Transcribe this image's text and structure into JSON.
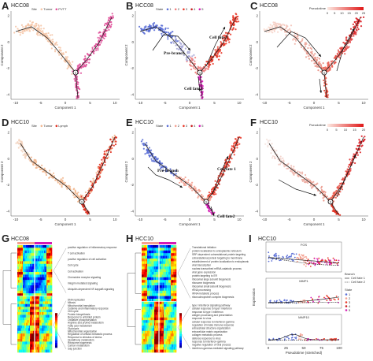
{
  "panels": {
    "A": {
      "letter": "A",
      "title": "HCC08",
      "legend_title": "Site",
      "legend_items": [
        "Tumor",
        "PVTT"
      ],
      "colors": [
        "#f5c6a8",
        "#e0519a"
      ],
      "xlabel": "Component 1",
      "ylabel": "Component 2"
    },
    "B": {
      "letter": "B",
      "title": "HCC08",
      "legend_title": "State",
      "legend_items": [
        "1",
        "2",
        "3",
        "4",
        "5"
      ],
      "colors": [
        "#5b6fd6",
        "#f08080",
        "#e83a2a",
        "#c81e1e",
        "#d41bb4"
      ],
      "xlabel": "Component 1",
      "ylabel": "Component 2",
      "annotations": [
        "Pre-branch",
        "Cell fate 1",
        "Cell fate 2"
      ]
    },
    "C": {
      "letter": "C",
      "title": "HCC08",
      "legend_title": "Pseudotime",
      "legend_ticks": [
        "0",
        "5",
        "10",
        "15",
        "20",
        "25"
      ],
      "xlabel": "Component 1",
      "ylabel": "Component 2"
    },
    "D": {
      "letter": "D",
      "title": "HCC10",
      "legend_title": "Site",
      "legend_items": [
        "Tumor",
        "Lymph"
      ],
      "colors": [
        "#f2b78f",
        "#e03020"
      ],
      "xlabel": "Component 1",
      "ylabel": "Component 2"
    },
    "E": {
      "letter": "E",
      "title": "HCC10",
      "legend_title": "State",
      "legend_items": [
        "1",
        "2",
        "3",
        "4",
        "5"
      ],
      "colors": [
        "#5b6fd6",
        "#f4a090",
        "#e83a2a",
        "#c81e1e",
        "#d41bb4"
      ],
      "xlabel": "Component 1",
      "ylabel": "Component 2",
      "annotations": [
        "Pre-branch",
        "Cell fate 1",
        "Cell fate2"
      ]
    },
    "F": {
      "letter": "F",
      "title": "HCC10",
      "legend_title": "Pseudotime",
      "legend_ticks": [
        "0",
        "5",
        "10",
        "15",
        "20"
      ],
      "xlabel": "Component 1",
      "ylabel": "Component 2"
    },
    "G": {
      "letter": "G",
      "title": "HCC08",
      "terms_top": [
        "positive regulation of inflammatory response",
        "T cell activation",
        "positive regulation of cell activation",
        "Cell cycle",
        "Cell activation",
        "Chemokine receptor signaling",
        "Integrin mediated signaling",
        "Ubiquitin-dependent NF-kappaB signaling"
      ],
      "terms_bottom": [
        "DNA replication",
        "Mitosis",
        "Mitochondrial translation",
        "Cytokine and inflammatory response",
        "Cell cycle",
        "Protein biosynthesis",
        "Response to unfolded protein",
        "Oxidative phosphorylation",
        "Arginine and proline metabolism",
        "Fatty acid metabolism",
        "Glycolysis",
        "Mitochondrial organization",
        "Regulation of cellular metabolic process",
        "Response to stimulus of stress",
        "Glutathione metabolism",
        "Ribosome biogenesis",
        "Carbon metabolism",
        "Gap junction"
      ]
    },
    "H": {
      "letter": "H",
      "title": "HCC10",
      "terms_top": [
        "Translational initiation",
        "protein localization to endoplasmic reticulum",
        "SRP-dependent cotranslational protein targeting",
        "cotranslational protein targeting to membrane",
        "establishment of protein localization to endoplasmic reticulum",
        "viral transcription",
        "nuclear-transcribed mRNA catabolic process",
        "viral gene expression",
        "protein targeting to ER",
        "ribosomal large subunit biogenesis",
        "ribosome biogenesis",
        "ribosomal small subunit biogenesis",
        "rRNA processing",
        "rRNA metabolic process",
        "ribonucleoprotein complex biogenesis"
      ],
      "terms_bottom": [
        "type I interferon signaling pathway",
        "cellular response to type I interferon",
        "response to type I interferon",
        "antigen processing and presentation",
        "response to virus",
        "cellular response to interferon-gamma",
        "regulation of innate immune response",
        "extracellular structure organization",
        "extracellular matrix organization",
        "collagen metabolic process",
        "defense response to virus",
        "response to interferon-gamma",
        "negative regulation of viral process",
        "interferon-gamma-mediated signaling pathway"
      ]
    },
    "I": {
      "letter": "I",
      "title": "HCC10",
      "genes": [
        "FOS",
        "MMP1",
        "MMP10"
      ],
      "xlabel": "Pseudotime (stretched)",
      "ylabel": "Expression",
      "branch_title": "Branch",
      "branch_items": [
        "Cell fate 1",
        "Cell fate 2"
      ],
      "state_title": "State",
      "state_items": [
        "1",
        "2",
        "3",
        "4",
        "5"
      ],
      "state_colors": [
        "#5b6fd6",
        "#f4a090",
        "#e83a2a",
        "#c81e1e",
        "#d41bb4"
      ],
      "xticks": [
        "0",
        "25",
        "50",
        "75",
        "100"
      ]
    }
  },
  "chart_data": [
    {
      "type": "scatter",
      "panel": "A",
      "title": "HCC08",
      "series": [
        {
          "name": "Tumor",
          "color": "#f5c6a8"
        },
        {
          "name": "PVTT",
          "color": "#e0519a"
        }
      ],
      "xlabel": "Component 1",
      "ylabel": "Component 2"
    },
    {
      "type": "scatter",
      "panel": "B",
      "title": "HCC08",
      "series": [
        {
          "name": "1"
        },
        {
          "name": "2"
        },
        {
          "name": "3"
        },
        {
          "name": "4"
        },
        {
          "name": "5"
        }
      ],
      "xlabel": "Component 1",
      "ylabel": "Component 2"
    },
    {
      "type": "scatter",
      "panel": "C",
      "title": "HCC08",
      "colorbar": {
        "label": "Pseudotime",
        "ticks": [
          0,
          5,
          10,
          15,
          20,
          25
        ]
      },
      "xlabel": "Component 1",
      "ylabel": "Component 2"
    },
    {
      "type": "scatter",
      "panel": "D",
      "title": "HCC10",
      "series": [
        {
          "name": "Tumor",
          "color": "#f2b78f"
        },
        {
          "name": "Lymph",
          "color": "#e03020"
        }
      ],
      "xlabel": "Component 1",
      "ylabel": "Component 2"
    },
    {
      "type": "scatter",
      "panel": "E",
      "title": "HCC10",
      "series": [
        {
          "name": "1"
        },
        {
          "name": "2"
        },
        {
          "name": "3"
        },
        {
          "name": "4"
        },
        {
          "name": "5"
        }
      ],
      "xlabel": "Component 1",
      "ylabel": "Component 2"
    },
    {
      "type": "scatter",
      "panel": "F",
      "title": "HCC10",
      "colorbar": {
        "label": "Pseudotime",
        "ticks": [
          0,
          5,
          10,
          15,
          20
        ]
      },
      "xlabel": "Component 1",
      "ylabel": "Component 2"
    },
    {
      "type": "heatmap",
      "panel": "G",
      "title": "HCC08"
    },
    {
      "type": "heatmap",
      "panel": "H",
      "title": "HCC10"
    },
    {
      "type": "scatter",
      "panel": "I",
      "title": "HCC10",
      "facets": [
        "FOS",
        "MMP1",
        "MMP10"
      ],
      "xlabel": "Pseudotime (stretched)",
      "ylabel": "Expression",
      "xticks": [
        0,
        25,
        50,
        75,
        100
      ]
    }
  ]
}
